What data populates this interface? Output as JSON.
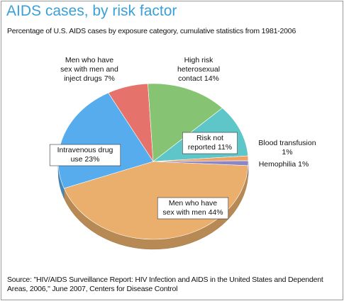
{
  "chart_data": {
    "type": "pie",
    "title": "AIDS cases, by risk factor",
    "subtitle": "Percentage of U.S. AIDS cases by exposure category, cumulative statistics from 1981-2006",
    "source": "Source:  \"HIV/AIDS Surveillance Report: HIV Infection and AIDS in the United States and Dependent Areas, 2006,\" June 2007, Centers for Disease Control",
    "slices": [
      {
        "label": "Men who have sex with men",
        "value": 44,
        "color": "#eaaf6c"
      },
      {
        "label": "Intravenous drug use",
        "value": 23,
        "color": "#56acec"
      },
      {
        "label": "Men who have sex with men and inject drugs",
        "value": 7,
        "color": "#e6736b"
      },
      {
        "label": "High risk heterosexual contact",
        "value": 14,
        "color": "#86c474"
      },
      {
        "label": "Risk not reported",
        "value": 11,
        "color": "#5ec5c9"
      },
      {
        "label": "Blood transfusion",
        "value": 1,
        "color": "#f0a060"
      },
      {
        "label": "Hemophilia",
        "value": 1,
        "color": "#8a86c8"
      }
    ],
    "data_labels": [
      {
        "lines": [
          "Men who have",
          "sex with men 44%"
        ]
      },
      {
        "lines": [
          "Intravenous drug",
          "use 23%"
        ]
      },
      {
        "lines": [
          "Men who have",
          "sex with men and",
          "inject drugs 7%"
        ]
      },
      {
        "lines": [
          "High risk",
          "heterosexual",
          "contact 14%"
        ]
      },
      {
        "lines": [
          "Risk not",
          "reported 11%"
        ]
      },
      {
        "lines": [
          "Blood transfusion",
          "1%"
        ]
      },
      {
        "lines": [
          "Hemophilia 1%"
        ]
      }
    ]
  }
}
